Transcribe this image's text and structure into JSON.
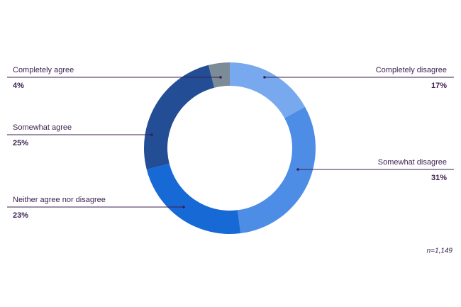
{
  "chart_data": {
    "type": "donut",
    "categories": [
      "Completely disagree",
      "Somewhat disagree",
      "Neither agree nor disagree",
      "Somewhat agree",
      "Completely agree"
    ],
    "values": [
      17,
      31,
      23,
      25,
      4
    ],
    "value_labels": [
      "17%",
      "31%",
      "23%",
      "25%",
      "4%"
    ],
    "colors": [
      "#78a9ee",
      "#4d8de6",
      "#1769d6",
      "#234e96",
      "#7b8b97"
    ],
    "note": "n=1,149"
  }
}
